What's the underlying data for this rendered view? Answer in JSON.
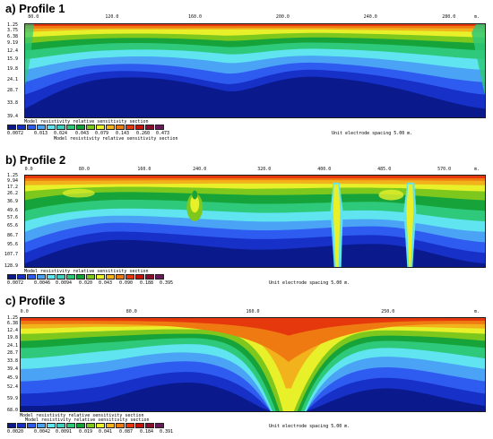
{
  "palette": [
    "#0a1a8c",
    "#1630c8",
    "#2f5cf0",
    "#4aa3f5",
    "#5fe4f0",
    "#2ec97a",
    "#15a33a",
    "#7ec81e",
    "#e8f02a",
    "#f2b21c",
    "#f07a12",
    "#e5380c",
    "#c8120c",
    "#8c0f2e",
    "#6a1a5a"
  ],
  "panels": [
    {
      "title": "a) Profile 1",
      "x_ticks": [
        "80.0",
        "120.0",
        "160.0",
        "200.0",
        "240.0",
        "280.0"
      ],
      "x_unit": "m.",
      "depth_ticks": [
        "1.25",
        "3.75",
        "6.38",
        "9.19",
        "12.4",
        "15.9",
        "19.8",
        "24.1",
        "28.7",
        "33.8",
        "39.4"
      ],
      "caption_top": "Model resistivity relative sensitivity section",
      "caption_bottom": "Model resistivity relative sensitivity section",
      "legend_values": [
        "0.0072",
        "0.013",
        "0.024",
        "0.043",
        "0.079",
        "0.143",
        "0.260",
        "0.473"
      ],
      "spacing_label": "Unit electrode spacing 5.00 m."
    },
    {
      "title": "b) Profile 2",
      "x_ticks": [
        "0.0",
        "80.0",
        "160.0",
        "240.0",
        "320.0",
        "400.0",
        "485.0",
        "570.0"
      ],
      "x_unit": "m.",
      "depth_ticks": [
        "1.25",
        "9.94",
        "17.2",
        "26.2",
        "36.9",
        "49.6",
        "57.6",
        "65.6",
        "86.7",
        "95.6",
        "107.7",
        "128.9"
      ],
      "caption_top": "Model resistivity relative sensitivity section",
      "caption_bottom": "",
      "legend_values": [
        "0.0072",
        "0.0046",
        "0.0094",
        "0.020",
        "0.043",
        "0.090",
        "0.188",
        "0.395"
      ],
      "spacing_label": "Unit electrode spacing 5.00 m."
    },
    {
      "title": "c) Profile 3",
      "x_ticks": [
        "0.0",
        "80.0",
        "160.0",
        "250.0"
      ],
      "x_unit": "m.",
      "depth_ticks": [
        "1.25",
        "6.38",
        "12.4",
        "19.8",
        "24.1",
        "28.7",
        "33.8",
        "39.4",
        "45.9",
        "52.4",
        "59.9",
        "68.0"
      ],
      "caption_top": "Model resistivity relative sensitivity section",
      "caption_bottom": "Model resistivity relative sensitivity section",
      "legend_values": [
        "0.0020",
        "0.0042",
        "0.0091",
        "0.019",
        "0.041",
        "0.087",
        "0.184",
        "0.391"
      ],
      "spacing_label": "Unit electrode spacing 5.00 m."
    }
  ]
}
